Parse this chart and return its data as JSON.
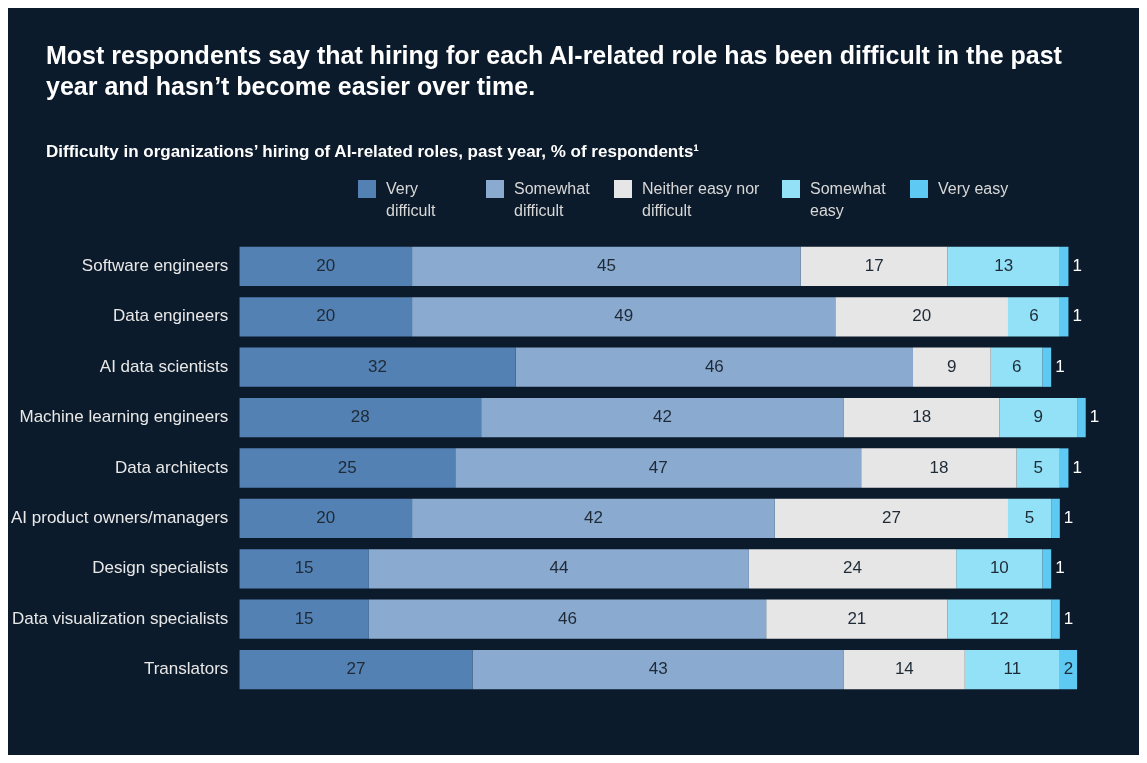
{
  "chart_data": {
    "type": "bar",
    "orientation": "horizontal",
    "stacked": true,
    "title": "Most respondents say that hiring for each AI-related role has been difficult in the past year and hasn’t become easier over time.",
    "subtitle": "Difficulty in organizations’ hiring of AI-related roles, past year, % of respondents¹",
    "categories": [
      "Software engineers",
      "Data engineers",
      "AI data scientists",
      "Machine learning engineers",
      "Data architects",
      "AI product owners/managers",
      "Design specialists",
      "Data visualization specialists",
      "Translators"
    ],
    "series": [
      {
        "name": "Very difficult",
        "color": "#5381b3",
        "values": [
          20,
          20,
          32,
          28,
          25,
          20,
          15,
          15,
          27
        ]
      },
      {
        "name": "Somewhat difficult",
        "color": "#8aaad0",
        "values": [
          45,
          49,
          46,
          42,
          47,
          42,
          44,
          46,
          43
        ]
      },
      {
        "name": "Neither easy nor difficult",
        "color": "#e6e6e6",
        "values": [
          17,
          20,
          9,
          18,
          18,
          27,
          24,
          21,
          14
        ]
      },
      {
        "name": "Somewhat easy",
        "color": "#93e1f7",
        "values": [
          13,
          6,
          6,
          9,
          5,
          5,
          10,
          12,
          11
        ]
      },
      {
        "name": "Very easy",
        "color": "#5ec9f3",
        "values": [
          1,
          1,
          1,
          1,
          1,
          1,
          1,
          1,
          2
        ]
      }
    ],
    "tick_labels": "y",
    "legend": "top",
    "data_labels": true
  }
}
